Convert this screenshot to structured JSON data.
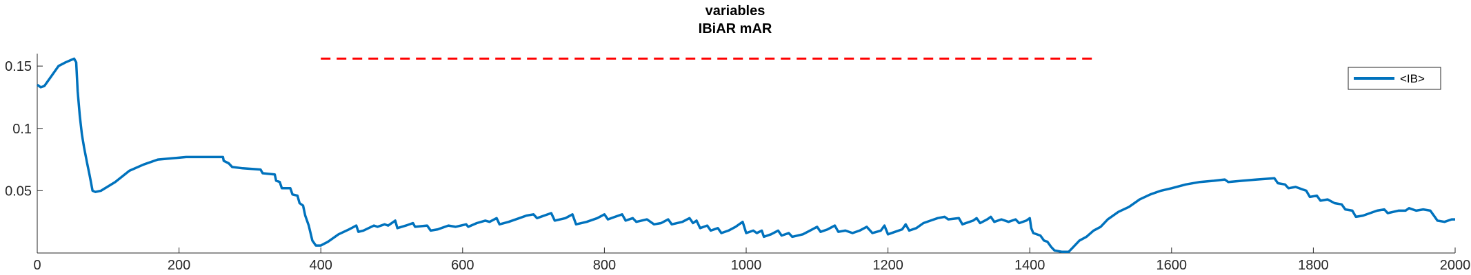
{
  "chart_data": {
    "type": "line",
    "title": [
      "variables",
      "IBiAR mAR"
    ],
    "xlabel": "",
    "ylabel": "",
    "xlim": [
      0,
      2000
    ],
    "ylim": [
      0,
      0.16
    ],
    "xticks": [
      0,
      200,
      400,
      600,
      800,
      1000,
      1200,
      1400,
      1600,
      1800,
      2000
    ],
    "xtick_labels": [
      "0",
      "200",
      "400",
      "600",
      "800",
      "1000",
      "1200",
      "1400",
      "1600",
      "1800",
      "2000"
    ],
    "yticks": [
      0.05,
      0.1,
      0.15
    ],
    "ytick_labels": [
      "0.05",
      "0.1",
      "0.15"
    ],
    "grid": false,
    "legend_position": "top-right",
    "series": [
      {
        "name": "<IB>",
        "color": "#0072BD",
        "style": "solid",
        "points": [
          [
            0,
            0.135
          ],
          [
            5,
            0.133
          ],
          [
            10,
            0.134
          ],
          [
            20,
            0.142
          ],
          [
            30,
            0.15
          ],
          [
            40,
            0.153
          ],
          [
            48,
            0.155
          ],
          [
            52,
            0.156
          ],
          [
            55,
            0.153
          ],
          [
            57,
            0.13
          ],
          [
            60,
            0.11
          ],
          [
            63,
            0.095
          ],
          [
            66,
            0.085
          ],
          [
            70,
            0.073
          ],
          [
            74,
            0.062
          ],
          [
            78,
            0.05
          ],
          [
            82,
            0.049
          ],
          [
            90,
            0.05
          ],
          [
            110,
            0.057
          ],
          [
            130,
            0.066
          ],
          [
            150,
            0.071
          ],
          [
            170,
            0.075
          ],
          [
            190,
            0.076
          ],
          [
            210,
            0.077
          ],
          [
            230,
            0.077
          ],
          [
            262,
            0.077
          ],
          [
            263,
            0.074
          ],
          [
            270,
            0.072
          ],
          [
            275,
            0.069
          ],
          [
            290,
            0.068
          ],
          [
            315,
            0.067
          ],
          [
            318,
            0.064
          ],
          [
            335,
            0.063
          ],
          [
            337,
            0.058
          ],
          [
            342,
            0.057
          ],
          [
            345,
            0.052
          ],
          [
            357,
            0.052
          ],
          [
            360,
            0.047
          ],
          [
            367,
            0.046
          ],
          [
            370,
            0.04
          ],
          [
            375,
            0.038
          ],
          [
            378,
            0.03
          ],
          [
            383,
            0.022
          ],
          [
            388,
            0.01
          ],
          [
            393,
            0.006
          ],
          [
            400,
            0.006
          ],
          [
            410,
            0.009
          ],
          [
            425,
            0.015
          ],
          [
            440,
            0.019
          ],
          [
            450,
            0.022
          ],
          [
            453,
            0.017
          ],
          [
            460,
            0.018
          ],
          [
            475,
            0.022
          ],
          [
            480,
            0.021
          ],
          [
            490,
            0.023
          ],
          [
            495,
            0.022
          ],
          [
            505,
            0.026
          ],
          [
            508,
            0.02
          ],
          [
            520,
            0.022
          ],
          [
            530,
            0.024
          ],
          [
            533,
            0.021
          ],
          [
            550,
            0.022
          ],
          [
            555,
            0.018
          ],
          [
            565,
            0.019
          ],
          [
            580,
            0.022
          ],
          [
            590,
            0.021
          ],
          [
            605,
            0.023
          ],
          [
            608,
            0.021
          ],
          [
            620,
            0.024
          ],
          [
            632,
            0.026
          ],
          [
            638,
            0.025
          ],
          [
            648,
            0.028
          ],
          [
            652,
            0.023
          ],
          [
            665,
            0.025
          ],
          [
            680,
            0.028
          ],
          [
            690,
            0.03
          ],
          [
            700,
            0.031
          ],
          [
            705,
            0.028
          ],
          [
            715,
            0.03
          ],
          [
            725,
            0.032
          ],
          [
            730,
            0.026
          ],
          [
            745,
            0.028
          ],
          [
            755,
            0.031
          ],
          [
            760,
            0.023
          ],
          [
            775,
            0.025
          ],
          [
            790,
            0.028
          ],
          [
            800,
            0.031
          ],
          [
            805,
            0.027
          ],
          [
            815,
            0.029
          ],
          [
            825,
            0.031
          ],
          [
            830,
            0.026
          ],
          [
            840,
            0.028
          ],
          [
            845,
            0.025
          ],
          [
            860,
            0.027
          ],
          [
            870,
            0.023
          ],
          [
            880,
            0.024
          ],
          [
            890,
            0.027
          ],
          [
            895,
            0.023
          ],
          [
            910,
            0.025
          ],
          [
            920,
            0.028
          ],
          [
            925,
            0.024
          ],
          [
            930,
            0.026
          ],
          [
            935,
            0.02
          ],
          [
            945,
            0.022
          ],
          [
            950,
            0.018
          ],
          [
            960,
            0.02
          ],
          [
            965,
            0.016
          ],
          [
            975,
            0.018
          ],
          [
            985,
            0.021
          ],
          [
            995,
            0.025
          ],
          [
            1000,
            0.016
          ],
          [
            1010,
            0.018
          ],
          [
            1015,
            0.016
          ],
          [
            1022,
            0.018
          ],
          [
            1025,
            0.013
          ],
          [
            1035,
            0.015
          ],
          [
            1045,
            0.018
          ],
          [
            1050,
            0.014
          ],
          [
            1060,
            0.016
          ],
          [
            1065,
            0.013
          ],
          [
            1080,
            0.015
          ],
          [
            1090,
            0.018
          ],
          [
            1100,
            0.021
          ],
          [
            1105,
            0.017
          ],
          [
            1115,
            0.019
          ],
          [
            1125,
            0.022
          ],
          [
            1130,
            0.017
          ],
          [
            1140,
            0.018
          ],
          [
            1150,
            0.016
          ],
          [
            1160,
            0.018
          ],
          [
            1170,
            0.021
          ],
          [
            1178,
            0.016
          ],
          [
            1190,
            0.018
          ],
          [
            1195,
            0.022
          ],
          [
            1200,
            0.015
          ],
          [
            1210,
            0.017
          ],
          [
            1220,
            0.019
          ],
          [
            1225,
            0.023
          ],
          [
            1230,
            0.018
          ],
          [
            1240,
            0.02
          ],
          [
            1250,
            0.024
          ],
          [
            1260,
            0.026
          ],
          [
            1270,
            0.028
          ],
          [
            1280,
            0.029
          ],
          [
            1285,
            0.027
          ],
          [
            1300,
            0.028
          ],
          [
            1305,
            0.023
          ],
          [
            1320,
            0.026
          ],
          [
            1325,
            0.028
          ],
          [
            1330,
            0.024
          ],
          [
            1340,
            0.027
          ],
          [
            1345,
            0.029
          ],
          [
            1350,
            0.025
          ],
          [
            1360,
            0.027
          ],
          [
            1370,
            0.025
          ],
          [
            1380,
            0.027
          ],
          [
            1385,
            0.024
          ],
          [
            1395,
            0.026
          ],
          [
            1400,
            0.028
          ],
          [
            1402,
            0.02
          ],
          [
            1405,
            0.016
          ],
          [
            1415,
            0.014
          ],
          [
            1420,
            0.01
          ],
          [
            1425,
            0.009
          ],
          [
            1430,
            0.005
          ],
          [
            1435,
            0.002
          ],
          [
            1445,
            0.001
          ],
          [
            1455,
            0.001
          ],
          [
            1460,
            0.004
          ],
          [
            1470,
            0.01
          ],
          [
            1480,
            0.013
          ],
          [
            1490,
            0.018
          ],
          [
            1500,
            0.021
          ],
          [
            1510,
            0.027
          ],
          [
            1525,
            0.033
          ],
          [
            1540,
            0.037
          ],
          [
            1555,
            0.043
          ],
          [
            1570,
            0.047
          ],
          [
            1585,
            0.05
          ],
          [
            1600,
            0.052
          ],
          [
            1620,
            0.055
          ],
          [
            1640,
            0.057
          ],
          [
            1660,
            0.058
          ],
          [
            1675,
            0.059
          ],
          [
            1680,
            0.057
          ],
          [
            1700,
            0.058
          ],
          [
            1720,
            0.059
          ],
          [
            1745,
            0.06
          ],
          [
            1750,
            0.056
          ],
          [
            1760,
            0.055
          ],
          [
            1765,
            0.052
          ],
          [
            1775,
            0.053
          ],
          [
            1785,
            0.051
          ],
          [
            1790,
            0.05
          ],
          [
            1795,
            0.045
          ],
          [
            1805,
            0.046
          ],
          [
            1810,
            0.042
          ],
          [
            1820,
            0.043
          ],
          [
            1830,
            0.04
          ],
          [
            1840,
            0.039
          ],
          [
            1845,
            0.035
          ],
          [
            1855,
            0.034
          ],
          [
            1860,
            0.029
          ],
          [
            1870,
            0.03
          ],
          [
            1880,
            0.032
          ],
          [
            1890,
            0.034
          ],
          [
            1900,
            0.035
          ],
          [
            1905,
            0.032
          ],
          [
            1920,
            0.034
          ],
          [
            1930,
            0.034
          ],
          [
            1935,
            0.036
          ],
          [
            1945,
            0.034
          ],
          [
            1955,
            0.035
          ],
          [
            1965,
            0.034
          ],
          [
            1970,
            0.03
          ],
          [
            1975,
            0.026
          ],
          [
            1985,
            0.025
          ],
          [
            1995,
            0.027
          ],
          [
            2000,
            0.027
          ]
        ]
      },
      {
        "name": "",
        "color": "#FF0000",
        "style": "dashed",
        "points": [
          [
            400,
            0.156
          ],
          [
            1490,
            0.156
          ]
        ]
      }
    ]
  }
}
